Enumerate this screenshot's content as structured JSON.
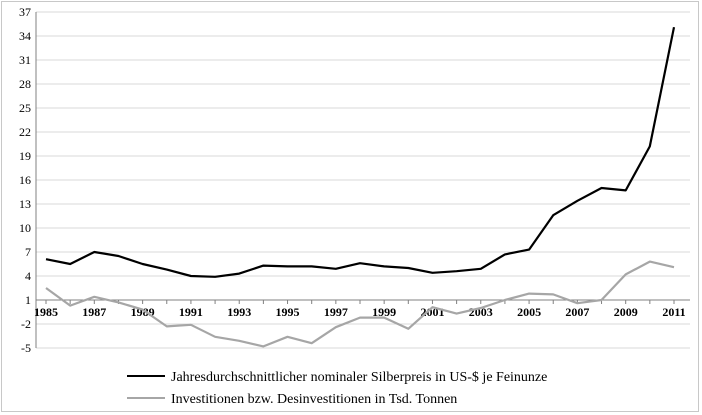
{
  "chart_data": {
    "type": "line",
    "title": "",
    "xlabel": "",
    "ylabel": "",
    "x": [
      1985,
      1986,
      1987,
      1988,
      1989,
      1990,
      1991,
      1992,
      1993,
      1994,
      1995,
      1996,
      1997,
      1998,
      1999,
      2000,
      2001,
      2002,
      2003,
      2004,
      2005,
      2006,
      2007,
      2008,
      2009,
      2010,
      2011
    ],
    "x_tick_labels": [
      "1985",
      "1987",
      "1989",
      "1991",
      "1993",
      "1995",
      "1997",
      "1999",
      "2001",
      "2003",
      "2005",
      "2007",
      "2009",
      "2011"
    ],
    "y_ticks": [
      -5,
      -2,
      1,
      4,
      7,
      10,
      13,
      16,
      19,
      22,
      25,
      28,
      31,
      34,
      37
    ],
    "ylim": [
      -5,
      37
    ],
    "grid": true,
    "legend_position": "bottom",
    "series": [
      {
        "name": "Jahresdurchschnittlicher nominaler Silberpreis in US-$ je Feinunze",
        "color": "#000000",
        "values": [
          6.1,
          5.5,
          7.0,
          6.5,
          5.5,
          4.8,
          4.0,
          3.9,
          4.3,
          5.3,
          5.2,
          5.2,
          4.9,
          5.6,
          5.2,
          5.0,
          4.4,
          4.6,
          4.9,
          6.7,
          7.3,
          11.6,
          13.4,
          15.0,
          14.7,
          20.2,
          35.1
        ]
      },
      {
        "name": "Investitionen bzw. Desinvestitionen in Tsd. Tonnen",
        "color": "#a6a6a6",
        "values": [
          2.5,
          0.3,
          1.4,
          0.7,
          -0.2,
          -2.3,
          -2.1,
          -3.6,
          -4.1,
          -4.8,
          -3.6,
          -4.4,
          -2.4,
          -1.2,
          -1.2,
          -2.6,
          0.1,
          -0.7,
          0.0,
          1.0,
          1.8,
          1.7,
          0.6,
          1.0,
          4.2,
          5.8,
          5.1
        ]
      }
    ]
  }
}
